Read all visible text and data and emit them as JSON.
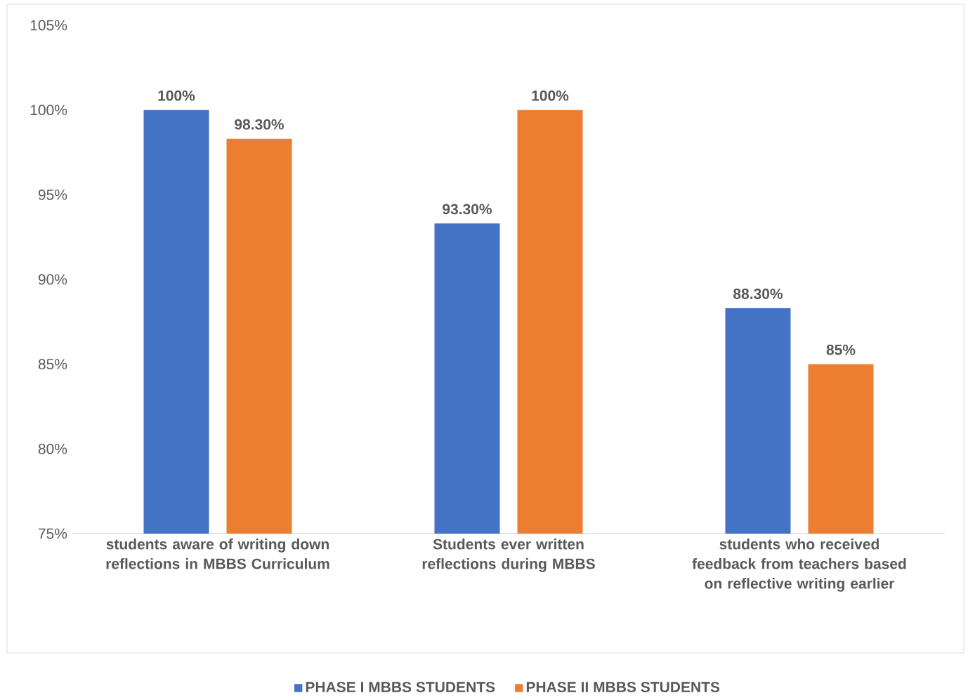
{
  "chart_data": {
    "type": "bar",
    "categories": [
      "students aware of writing down reflections in MBBS Curriculum",
      "Students ever written reflections during MBBS",
      "students who received feedback from teachers based on reflective writing earlier"
    ],
    "series": [
      {
        "name": "PHASE I MBBS STUDENTS",
        "color": "#4472c4",
        "values": [
          100,
          93.3,
          88.3
        ],
        "value_labels": [
          "100%",
          "93.30%",
          "88.30%"
        ]
      },
      {
        "name": "PHASE II MBBS STUDENTS",
        "color": "#ed7d31",
        "values": [
          98.3,
          100,
          85
        ],
        "value_labels": [
          "98.30%",
          "100%",
          "85%"
        ]
      }
    ],
    "ylim": [
      75,
      105
    ],
    "yticks": [
      {
        "value": 75,
        "label": "75%"
      },
      {
        "value": 80,
        "label": "80%"
      },
      {
        "value": 85,
        "label": "85%"
      },
      {
        "value": 90,
        "label": "90%"
      },
      {
        "value": 95,
        "label": "95%"
      },
      {
        "value": 100,
        "label": "100%"
      },
      {
        "value": 105,
        "label": "105%"
      }
    ],
    "legend": "bottom"
  }
}
